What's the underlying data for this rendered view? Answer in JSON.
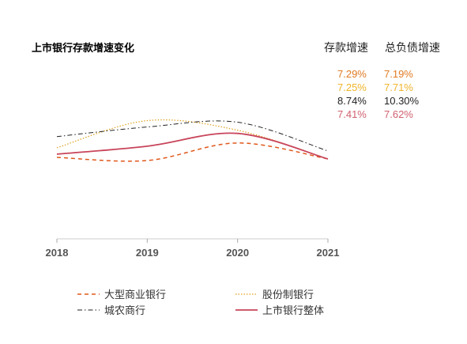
{
  "title": "上市银行存款增速变化",
  "columns": {
    "deposit": "存款增速",
    "liability": "总负债增速"
  },
  "rows": [
    {
      "deposit": "7.29%",
      "liability": "7.19%",
      "color": "#e07b24"
    },
    {
      "deposit": "7.25%",
      "liability": "7.71%",
      "color": "#f0b429"
    },
    {
      "deposit": "8.74%",
      "liability": "10.30%",
      "color": "#222222"
    },
    {
      "deposit": "7.41%",
      "liability": "7.62%",
      "color": "#d0606f"
    }
  ],
  "chart_data": {
    "type": "line",
    "x": [
      "2018",
      "2019",
      "2020",
      "2021"
    ],
    "ylim": [
      0,
      10
    ],
    "series": [
      {
        "name": "大型商业银行",
        "values": [
          5.1,
          4.9,
          6.0,
          5.0
        ],
        "color": "#e0581c",
        "dash": "dashed"
      },
      {
        "name": "股份制银行",
        "values": [
          5.7,
          7.4,
          6.8,
          5.0
        ],
        "color": "#e0a020",
        "dash": "dotted"
      },
      {
        "name": "城农商行",
        "values": [
          6.4,
          7.0,
          7.3,
          5.5
        ],
        "color": "#222222",
        "dash": "dashdot"
      },
      {
        "name": "上市银行整体",
        "values": [
          5.3,
          5.8,
          6.6,
          5.0
        ],
        "color": "#c8445a",
        "dash": "solid"
      }
    ],
    "grid": false,
    "legend_placement": "bottom"
  }
}
